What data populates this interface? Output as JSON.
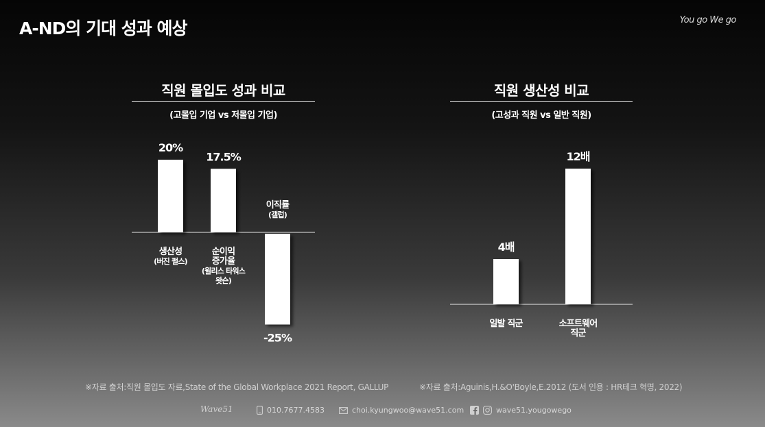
{
  "page": {
    "title": "A-ND의 기대 성과 예상",
    "tagline": "You go We go"
  },
  "left": {
    "title": "직원 몰입도 성과 비교",
    "subtitle": "(고몰입 기업 vs 저몰입 기업)",
    "source": "※자료 출처:직원 몰입도 자료,State of the Global Workplace 2021 Report, GALLUP"
  },
  "right": {
    "title": "직원 생산성 비교",
    "subtitle": "(고성과 직원 vs 일반 직원)",
    "source": "※자료 출처:Aguinis,H.&O'Boyle,E.2012 (도서 인용 : HR테크 혁명, 2022)"
  },
  "chart_data": [
    {
      "type": "bar",
      "title": "직원 몰입도 성과 비교",
      "subtitle": "(고몰입 기업 vs 저몰입 기업)",
      "categories": [
        [
          "생산성",
          "(버진 펄스)"
        ],
        [
          "순이익",
          "증가율",
          "(윌리스 타워스",
          "왓슨)"
        ],
        [
          "이직률",
          "(갤럽)"
        ]
      ],
      "values": [
        20,
        17.5,
        -25
      ],
      "value_labels": [
        "20%",
        "17.5%",
        "-25%"
      ],
      "unit": "%",
      "ylim": [
        -25,
        20
      ],
      "grid": false,
      "legend": "none"
    },
    {
      "type": "bar",
      "title": "직원 생산성 비교",
      "subtitle": "(고성과 직원 vs 일반 직원)",
      "categories": [
        [
          "일발 직군"
        ],
        [
          "소프트웨어",
          "직군"
        ]
      ],
      "values": [
        4,
        12
      ],
      "value_labels": [
        "4배",
        "12배"
      ],
      "unit": "배",
      "ylim": [
        0,
        12
      ],
      "grid": false,
      "legend": "none"
    }
  ],
  "footer": {
    "logo": "Wave51",
    "phone": "010.7677.4583",
    "email": "choi.kyungwoo@wave51.com",
    "social": "wave51.yougowego",
    "icons": [
      "phone-icon",
      "mail-icon",
      "facebook-icon",
      "instagram-icon"
    ]
  }
}
